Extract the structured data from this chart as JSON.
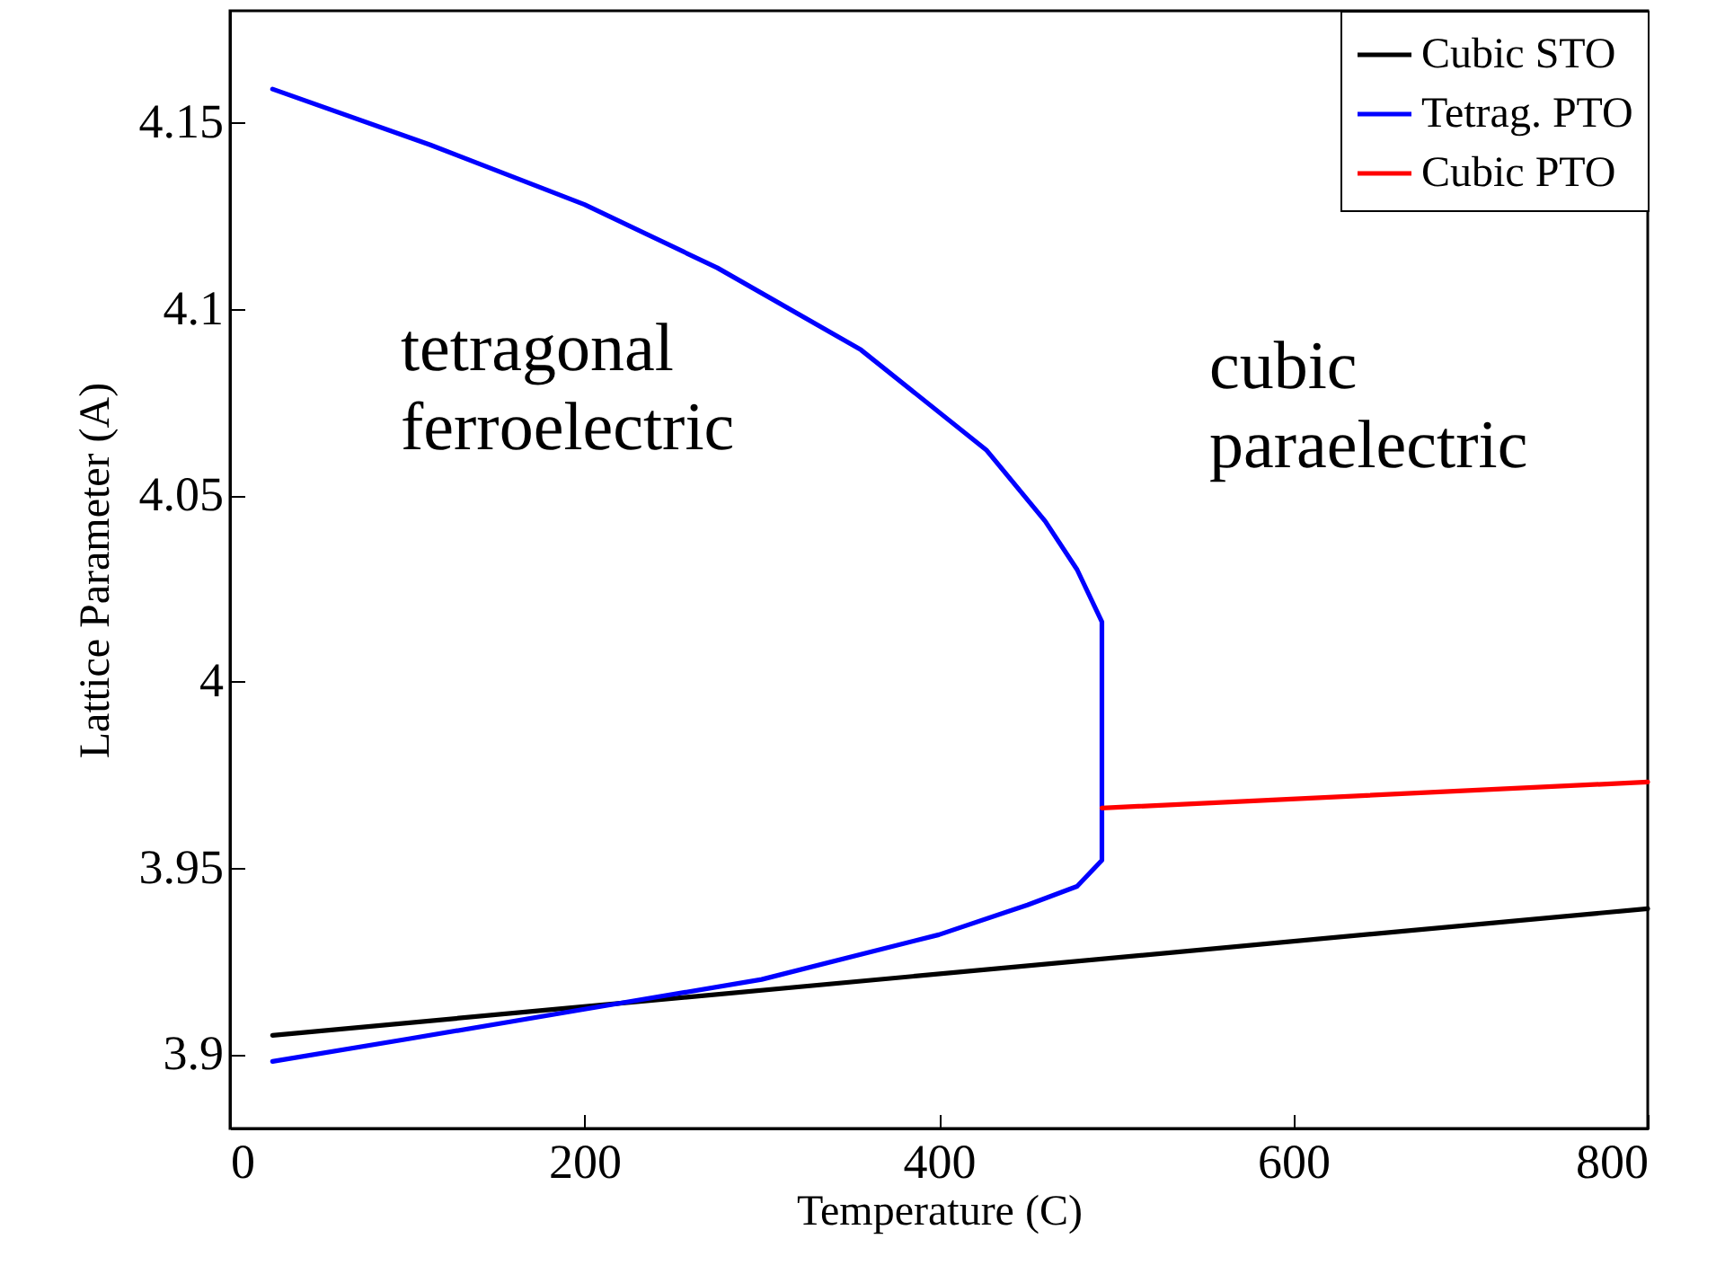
{
  "chart_data": {
    "type": "line",
    "xlabel": "Temperature (C)",
    "ylabel": "Lattice Parameter (A)",
    "xlim": [
      0,
      800
    ],
    "xticks": [
      0,
      200,
      400,
      600,
      800
    ],
    "ylim": [
      3.88,
      4.18
    ],
    "yticks": [
      3.9,
      3.95,
      4,
      4.05,
      4.1,
      4.15
    ],
    "legend": "top right",
    "grid": false,
    "line_style": "solid",
    "marker": "none",
    "annotations": [
      "tetragonal\nferroelectric",
      "cubic\nparaelectric"
    ],
    "series": [
      {
        "name": "Cubic STO",
        "color": "#000000",
        "x": [
          24,
          800
        ],
        "values": [
          3.905,
          3.939
        ]
      },
      {
        "name": "Tetrag. PTO",
        "color": "#0000ff",
        "x": [
          24,
          113,
          200,
          275,
          356,
          427,
          460,
          478,
          492,
          492,
          478,
          450,
          400,
          300,
          200,
          100,
          24
        ],
        "values": [
          4.159,
          4.144,
          4.128,
          4.111,
          4.089,
          4.062,
          4.043,
          4.03,
          4.016,
          3.952,
          3.945,
          3.94,
          3.932,
          3.92,
          3.912,
          3.904,
          3.898
        ]
      },
      {
        "name": "Cubic PTO",
        "color": "#ff0000",
        "x": [
          492,
          800
        ],
        "values": [
          3.966,
          3.973
        ]
      }
    ]
  }
}
